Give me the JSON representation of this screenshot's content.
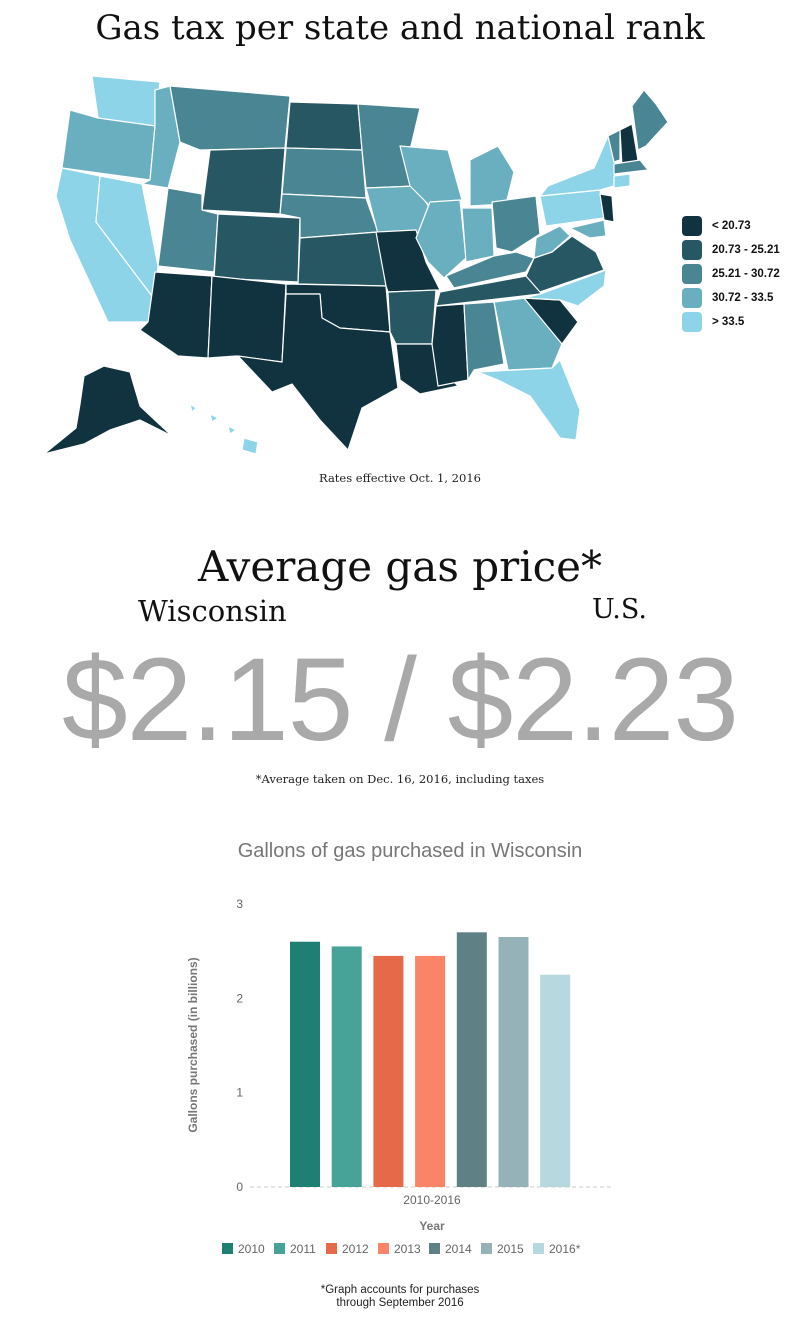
{
  "map": {
    "title": "Gas tax per state and national rank",
    "note": "Rates effective Oct. 1, 2016",
    "legend": [
      {
        "label": "< 20.73",
        "color": "#10333f"
      },
      {
        "label": "20.73 - 25.21",
        "color": "#285764"
      },
      {
        "label": "25.21 - 30.72",
        "color": "#4a8594"
      },
      {
        "label": "30.72 - 33.5",
        "color": "#6aafc0"
      },
      {
        "label": "> 33.5",
        "color": "#8dd4e8"
      }
    ]
  },
  "price": {
    "title": "Average gas price*",
    "wi_label": "Wisconsin",
    "us_label": "U.S.",
    "display": "$2.15 / $2.23",
    "note": "*Average taken on Dec. 16, 2016, including taxes"
  },
  "chart_data": {
    "type": "bar",
    "title": "Gallons of gas purchased in Wisconsin",
    "xlabel": "Year",
    "ylabel": "Gallons purchased (in billions)",
    "categories": [
      "2010-2016"
    ],
    "ylim": [
      0,
      3
    ],
    "yticks": [
      "0",
      "1",
      "2",
      "3"
    ],
    "legend_position": "bottom",
    "series": [
      {
        "name": "2010",
        "values": [
          2.6
        ],
        "color": "#1f7f73"
      },
      {
        "name": "2011",
        "values": [
          2.55
        ],
        "color": "#47a397"
      },
      {
        "name": "2012",
        "values": [
          2.45
        ],
        "color": "#e66a4a"
      },
      {
        "name": "2013",
        "values": [
          2.45
        ],
        "color": "#fa8468"
      },
      {
        "name": "2014",
        "values": [
          2.7
        ],
        "color": "#5f8185"
      },
      {
        "name": "2015",
        "values": [
          2.65
        ],
        "color": "#94b2b8"
      },
      {
        "name": "2016*",
        "values": [
          2.25
        ],
        "color": "#b6d8de"
      }
    ],
    "footnote": [
      "*Graph accounts for purchases",
      "through September 2016"
    ]
  }
}
